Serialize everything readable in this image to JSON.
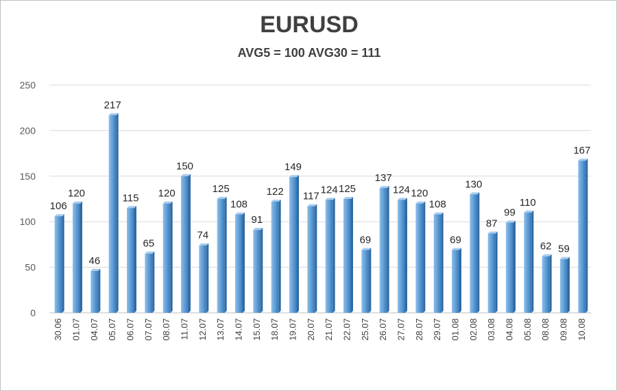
{
  "chart_data": {
    "type": "bar",
    "title": "EURUSD",
    "subtitle": "AVG5 = 100 AVG30 = 111",
    "categories": [
      "30.06",
      "01.07",
      "04.07",
      "05.07",
      "06.07",
      "07.07",
      "08.07",
      "11.07",
      "12.07",
      "13.07",
      "14.07",
      "15.07",
      "18.07",
      "19.07",
      "20.07",
      "21.07",
      "22.07",
      "25.07",
      "26.07",
      "27.07",
      "28.07",
      "29.07",
      "01.08",
      "02.08",
      "03.08",
      "04.08",
      "05.08",
      "08.08",
      "09.08",
      "10.08"
    ],
    "values": [
      106,
      120,
      46,
      217,
      115,
      65,
      120,
      150,
      74,
      125,
      108,
      91,
      122,
      149,
      117,
      124,
      125,
      69,
      137,
      124,
      120,
      108,
      69,
      130,
      87,
      99,
      110,
      62,
      59,
      167
    ],
    "ylim": [
      0,
      250
    ],
    "yticks": [
      0,
      50,
      100,
      150,
      200,
      250
    ],
    "grid": true,
    "legend": "none",
    "colors": {
      "bar": "#5b9bd5",
      "bar_light": "#8fbfe8",
      "bar_dark": "#3a78b5",
      "grid": "#d9d9d9"
    }
  }
}
